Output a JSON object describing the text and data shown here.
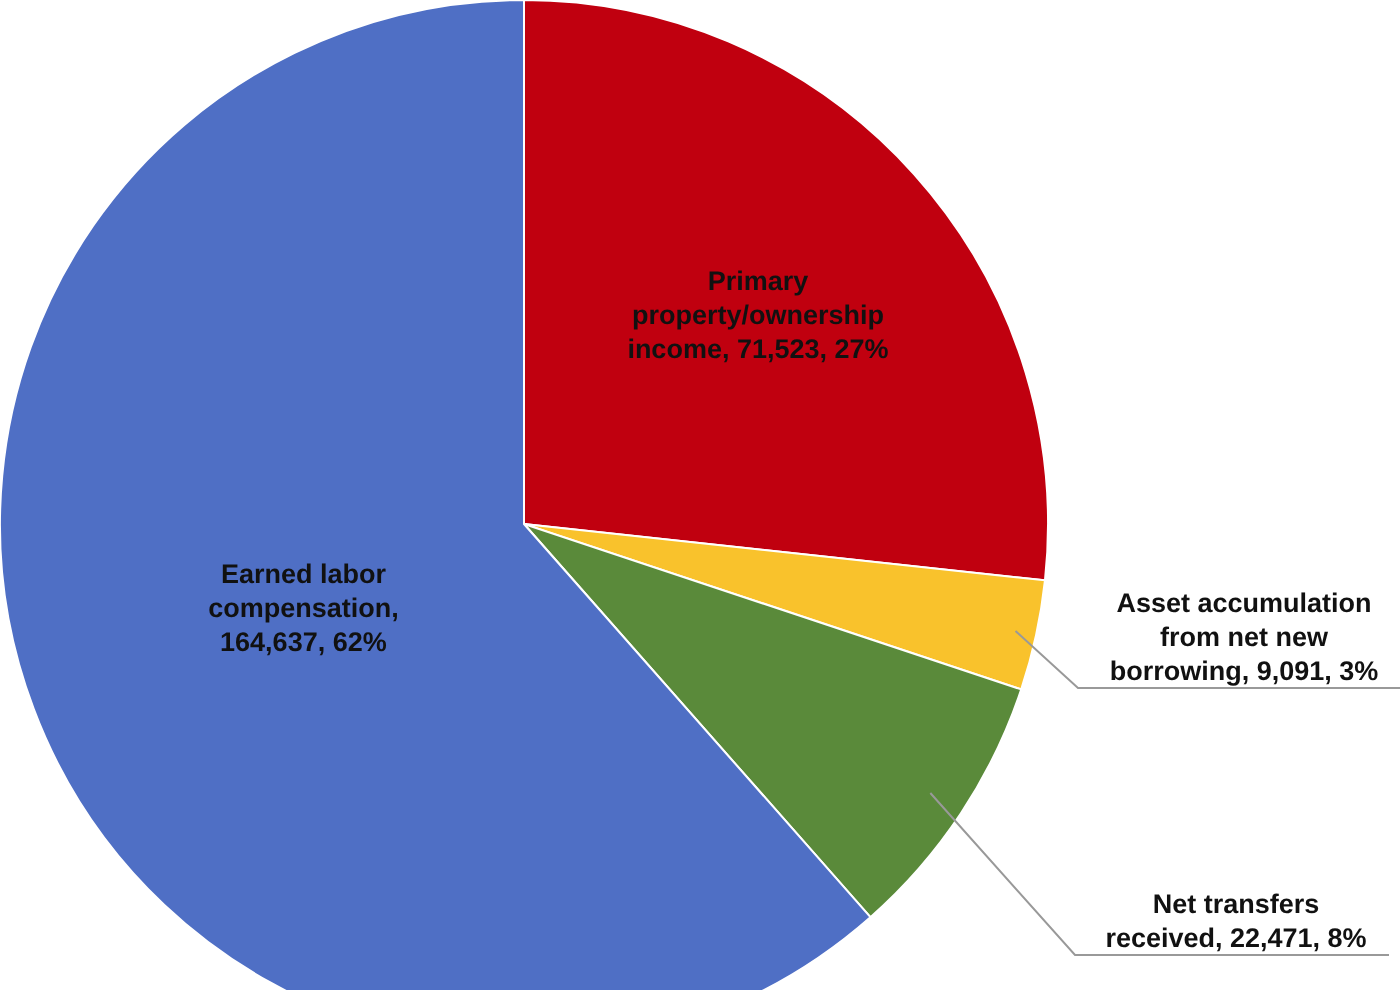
{
  "chart_data": {
    "type": "pie",
    "categories": [
      "Primary property/ownership income, 71,523, 27%",
      "Asset accumulation from net new borrowing, 9,091, 3%",
      "Net transfers received, 22,471, 8%",
      "Earned labor compensation, 164,637, 62%"
    ],
    "values": [
      71523,
      9091,
      22471,
      164637
    ],
    "colors": [
      "#c0000f",
      "#f9c22c",
      "#5a8a3a",
      "#4f6fc5"
    ]
  }
}
